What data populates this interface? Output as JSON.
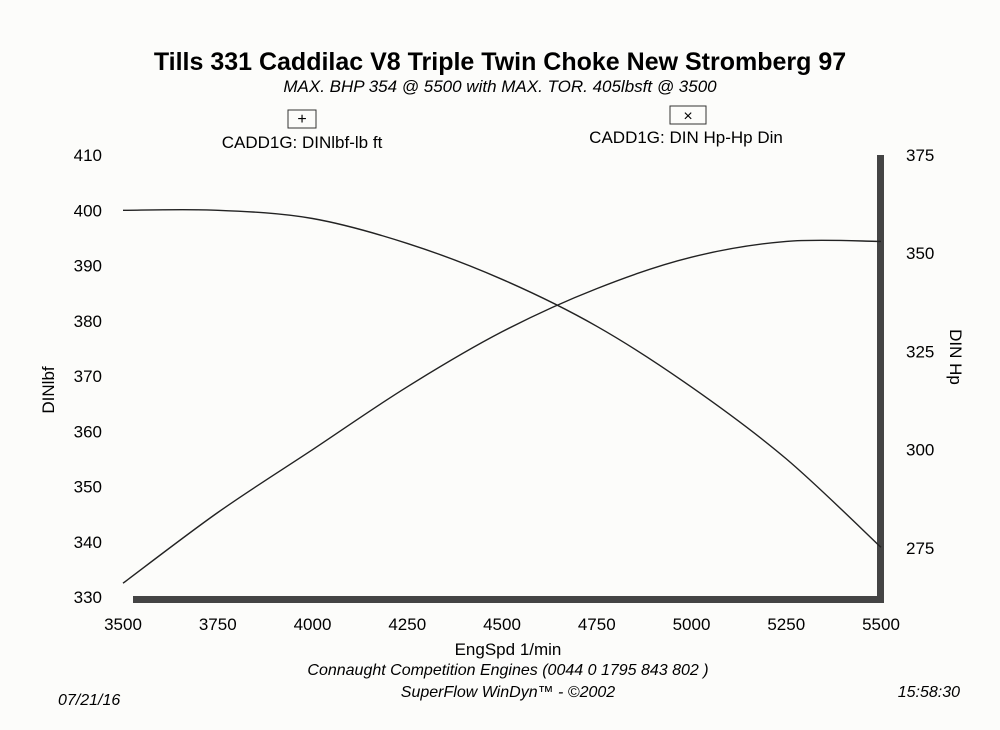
{
  "chart_data": {
    "type": "line",
    "title": "Tills 331 Caddilac V8 Triple Twin Choke New Stromberg  97",
    "subtitle": "MAX. BHP 354 @ 5500 with MAX. TOR. 405lbsft @ 3500",
    "xlabel": "EngSpd 1/min",
    "ylabel_left": "DINlbf",
    "ylabel_right": "DIN Hp",
    "xlim": [
      3500,
      5500
    ],
    "ylim_left": [
      330,
      410
    ],
    "ylim_right": [
      262.5,
      375
    ],
    "x_ticks": [
      "3500",
      "3750",
      "4000",
      "4250",
      "4500",
      "4750",
      "5000",
      "5250",
      "5500"
    ],
    "y_left_ticks": [
      "330",
      "340",
      "350",
      "360",
      "370",
      "380",
      "390",
      "400",
      "410"
    ],
    "y_right_ticks": [
      "275",
      "300",
      "325",
      "350",
      "375"
    ],
    "grid": false,
    "series": [
      {
        "name": "CADD1G: DINlbf-lb ft",
        "axis": "left",
        "marker": "+",
        "x": [
          3500,
          3750,
          4000,
          4250,
          4500,
          4750,
          5000,
          5250,
          5500
        ],
        "y": [
          400,
          400,
          398.5,
          394,
          387.5,
          379,
          368,
          355,
          339
        ]
      },
      {
        "name": "CADD1G: DIN Hp-Hp Din",
        "axis": "right",
        "marker": "×",
        "x": [
          3500,
          3750,
          4000,
          4250,
          4500,
          4750,
          5000,
          5250,
          5500
        ],
        "y": [
          266,
          284,
          300,
          316,
          330,
          341,
          349,
          353,
          353
        ]
      }
    ]
  },
  "footer": {
    "company": "Connaught Competition Engines  (0044 0 1795 843 802 )",
    "software": "SuperFlow WinDyn™ - ©2002",
    "date": "07/21/16",
    "time": "15:58:30"
  }
}
